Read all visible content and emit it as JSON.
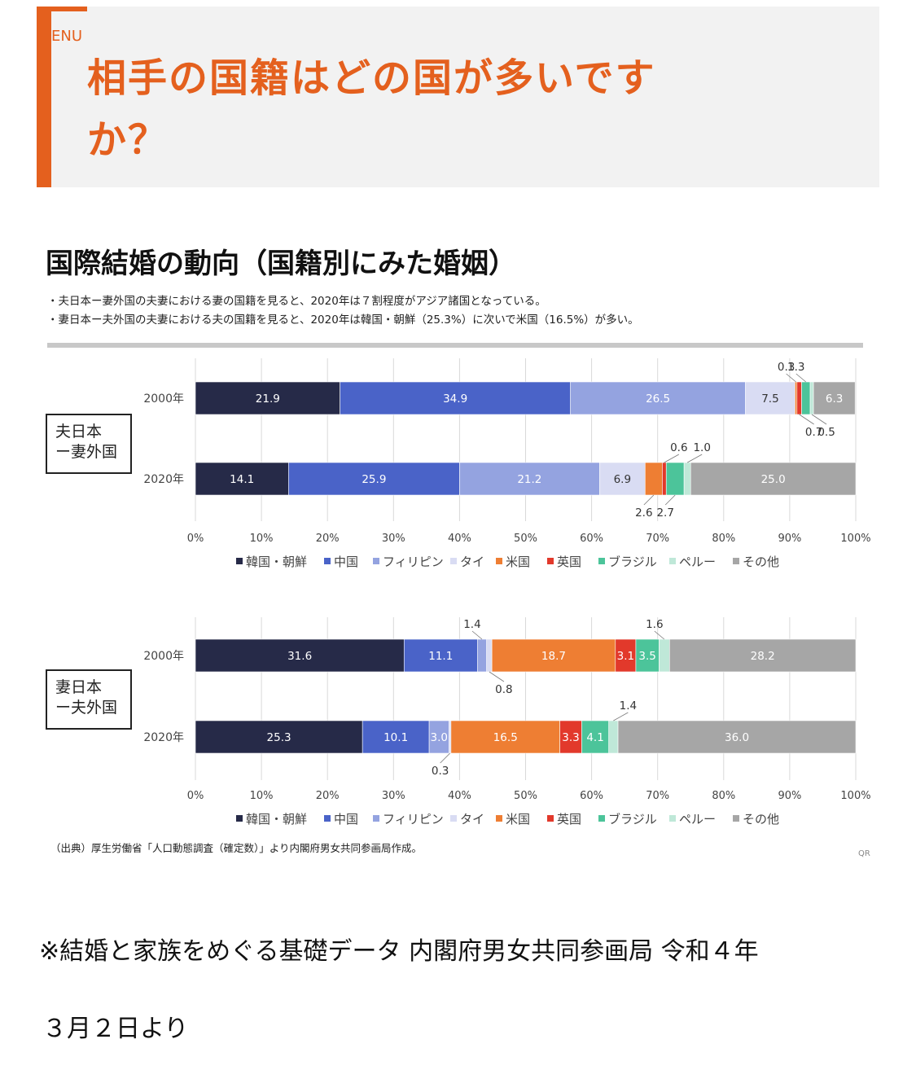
{
  "header": {
    "menu_text": "ENU",
    "title_line1": "相手の国籍はどの国が多いです",
    "title_line2": "か？"
  },
  "title": "国際結婚の動向（国籍別にみた婚姻）",
  "bullets": [
    "・夫日本ー妻外国の夫妻における妻の国籍を見ると、2020年は７割程度がアジア諸国となっている。",
    "・妻日本ー夫外国の夫妻における夫の国籍を見ると、2020年は韓国・朝鮮（25.3%）に次いで米国（16.5%）が多い。"
  ],
  "colors": {
    "韓国・朝鮮": "#262a48",
    "中国": "#4a63c8",
    "フィリピン": "#94a3e0",
    "タイ": "#d9dcf3",
    "米国": "#ee7e33",
    "英国": "#e2392b",
    "ブラジル": "#4cc49a",
    "ペルー": "#bfe8d8",
    "その他": "#a6a6a6"
  },
  "chart_data": [
    {
      "type": "bar",
      "orientation": "horizontal-stacked-100",
      "group_label": [
        "夫日本",
        "ー妻外国"
      ],
      "categories": [
        "2000年",
        "2020年"
      ],
      "xlim": [
        0,
        100
      ],
      "x_ticks": [
        "0%",
        "10%",
        "20%",
        "30%",
        "40%",
        "50%",
        "60%",
        "70%",
        "80%",
        "90%",
        "100%"
      ],
      "legend": [
        "韓国・朝鮮",
        "中国",
        "フィリピン",
        "タイ",
        "米国",
        "英国",
        "ブラジル",
        "ペルー",
        "その他"
      ],
      "series": [
        {
          "name": "韓国・朝鮮",
          "values": [
            21.9,
            14.1
          ]
        },
        {
          "name": "中国",
          "values": [
            34.9,
            25.9
          ]
        },
        {
          "name": "フィリピン",
          "values": [
            26.5,
            21.2
          ]
        },
        {
          "name": "タイ",
          "values": [
            7.5,
            6.9
          ]
        },
        {
          "name": "米国",
          "values": [
            0.3,
            2.6
          ]
        },
        {
          "name": "英国",
          "values": [
            0.7,
            0.6
          ]
        },
        {
          "name": "ブラジル",
          "values": [
            1.3,
            2.7
          ]
        },
        {
          "name": "ペルー",
          "values": [
            0.5,
            1.0
          ]
        },
        {
          "name": "その他",
          "values": [
            6.3,
            25.0
          ]
        }
      ]
    },
    {
      "type": "bar",
      "orientation": "horizontal-stacked-100",
      "group_label": [
        "妻日本",
        "ー夫外国"
      ],
      "categories": [
        "2000年",
        "2020年"
      ],
      "xlim": [
        0,
        100
      ],
      "x_ticks": [
        "0%",
        "10%",
        "20%",
        "30%",
        "40%",
        "50%",
        "60%",
        "70%",
        "80%",
        "90%",
        "100%"
      ],
      "legend": [
        "韓国・朝鮮",
        "中国",
        "フィリピン",
        "タイ",
        "米国",
        "英国",
        "ブラジル",
        "ペルー",
        "その他"
      ],
      "series": [
        {
          "name": "韓国・朝鮮",
          "values": [
            31.6,
            25.3
          ]
        },
        {
          "name": "中国",
          "values": [
            11.1,
            10.1
          ]
        },
        {
          "name": "フィリピン",
          "values": [
            1.4,
            3.0
          ]
        },
        {
          "name": "タイ",
          "values": [
            0.8,
            0.3
          ]
        },
        {
          "name": "米国",
          "values": [
            18.7,
            16.5
          ]
        },
        {
          "name": "英国",
          "values": [
            3.1,
            3.3
          ]
        },
        {
          "name": "ブラジル",
          "values": [
            3.5,
            4.1
          ]
        },
        {
          "name": "ペルー",
          "values": [
            1.6,
            1.4
          ]
        },
        {
          "name": "その他",
          "values": [
            28.2,
            36.0
          ]
        }
      ]
    }
  ],
  "source": "（出典）厚生労働省「人口動態調査（確定数）」より内閣府男女共同参画局作成。",
  "qr_text": "QR",
  "footnote_line1": "※結婚と家族をめぐる基礎データ 内閣府男女共同参画局 令和４年",
  "footnote_line2": "３月２日より"
}
